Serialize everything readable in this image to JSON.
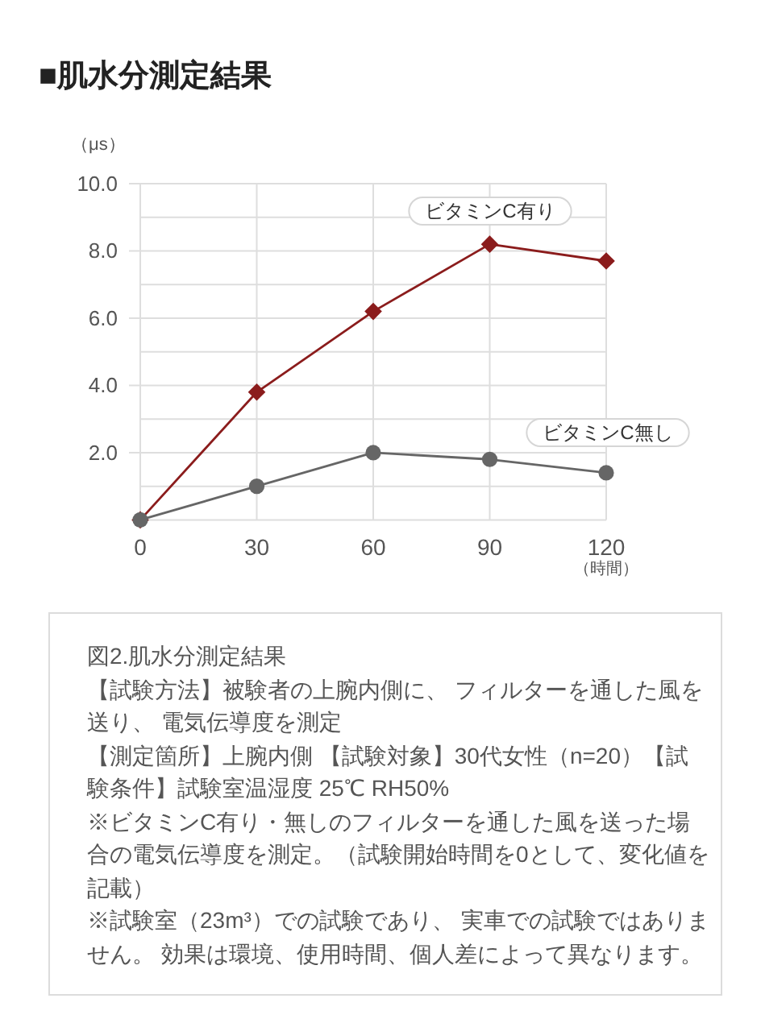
{
  "chart_data": {
    "type": "line",
    "title": "■肌水分測定結果",
    "ylabel": "（μs）",
    "xlabel": "（時間）",
    "x": [
      0,
      30,
      60,
      90,
      120
    ],
    "xlim": [
      0,
      120
    ],
    "xticks": [
      0,
      30,
      60,
      90,
      120
    ],
    "ylim": [
      0,
      10
    ],
    "yticks": [
      {
        "value": 0,
        "label": null
      },
      {
        "value": 1,
        "label": null
      },
      {
        "value": 2,
        "label": "2.0"
      },
      {
        "value": 3,
        "label": null
      },
      {
        "value": 4,
        "label": "4.0"
      },
      {
        "value": 5,
        "label": null
      },
      {
        "value": 6,
        "label": "6.0"
      },
      {
        "value": 7,
        "label": null
      },
      {
        "value": 8,
        "label": "8.0"
      },
      {
        "value": 9,
        "label": null
      },
      {
        "value": 10,
        "label": "10.0"
      }
    ],
    "grid": true,
    "series": [
      {
        "name": "ビタミンC有り",
        "color": "#8b1c1c",
        "marker": "diamond",
        "values": [
          0,
          3.8,
          6.2,
          8.2,
          7.7
        ]
      },
      {
        "name": "ビタミンC無し",
        "color": "#666666",
        "marker": "circle",
        "values": [
          0,
          1.0,
          2.0,
          1.8,
          1.4
        ]
      }
    ],
    "annotations": [
      "図2.肌水分測定結果",
      "【試験方法】被験者の上腕内側に、 フィルターを通した風を送り、 電気伝導度を測定",
      "【測定箇所】上腕内側 【試験対象】30代女性（n=20）【試験条件】試験室温湿度 25℃ RH50%",
      "※ビタミンC有り・無しのフィルターを通した風を送った場合の電気伝導度を測定。（試験開始時間を0として、変化値を記載）",
      "※試験室（23m³）での試験であり、 実車での試験ではありません。 効果は環境、使用時間、個人差によって異なります。"
    ]
  }
}
